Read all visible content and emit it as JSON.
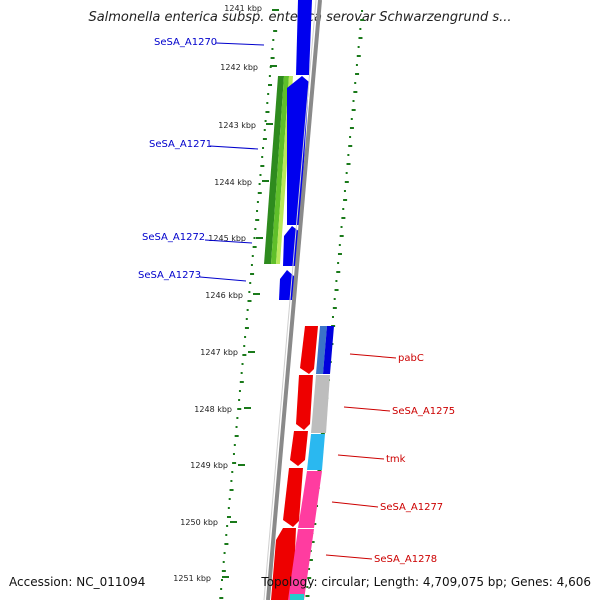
{
  "title": "Salmonella enterica subsp. enterica serovar Schwarzengrund s...",
  "accession": "Accession: NC_011094",
  "topology": "Topology: circular; Length: 4,709,075 bp; Genes: 4,606",
  "colors": {
    "backbone": "#7f7f7f",
    "forward_gene": "#0000ff",
    "reverse_gene": "#ff0000",
    "left_label": "#0000cc",
    "right_label": "#cc0000",
    "gc_dots": "#1a7a1a"
  },
  "kbp_labels": [
    "1241 kbp",
    "1242 kbp",
    "1243 kbp",
    "1244 kbp",
    "1245 kbp",
    "1246 kbp",
    "1247 kbp",
    "1248 kbp",
    "1249 kbp",
    "1250 kbp",
    "1251 kbp"
  ],
  "left_genes": [
    "SeSA_A1270",
    "SeSA_A1271",
    "SeSA_A1272",
    "SeSA_A1273"
  ],
  "right_genes": [
    "pabC",
    "SeSA_A1275",
    "tmk",
    "SeSA_A1277",
    "SeSA_A1278"
  ]
}
